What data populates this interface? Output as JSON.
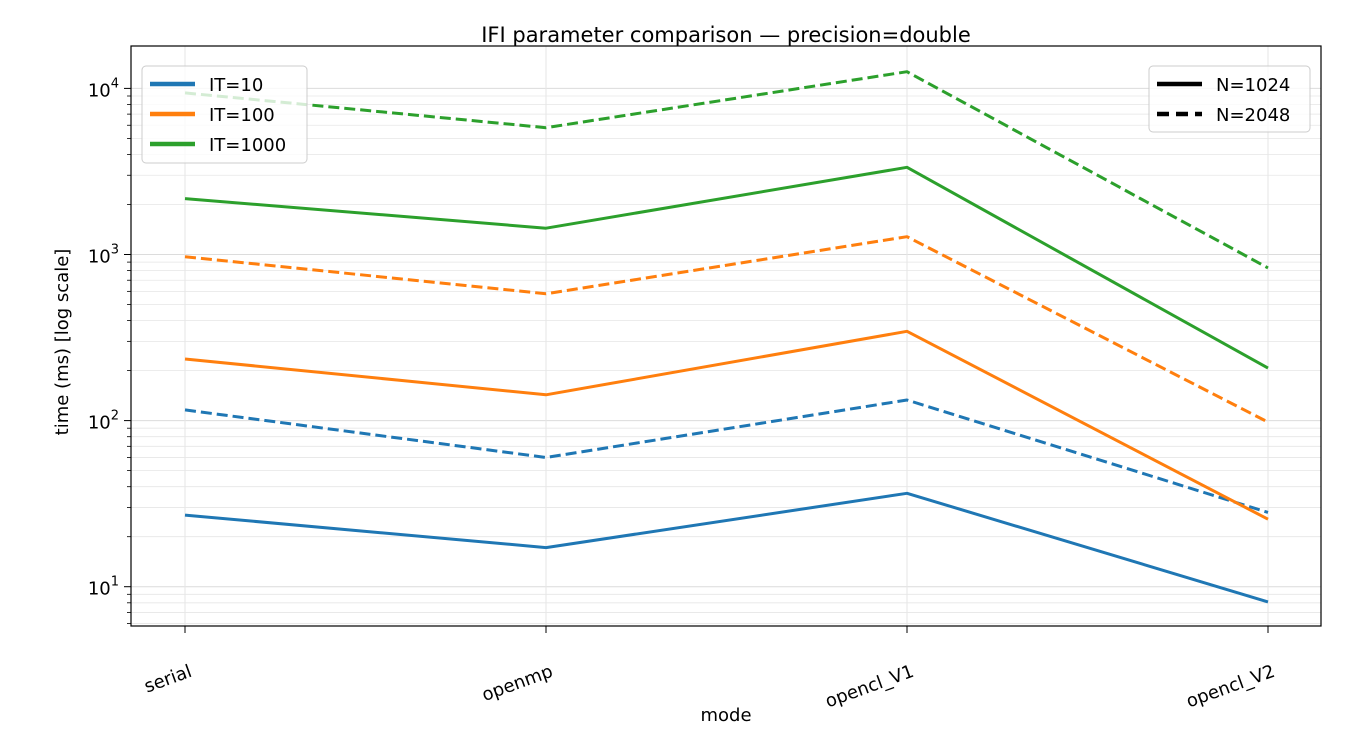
{
  "chart_data": {
    "type": "line",
    "title": "IFI parameter comparison — precision=double",
    "xlabel": "mode",
    "ylabel": "time (ms) [log scale]",
    "categories": [
      "serial",
      "openmp",
      "opencl_V1",
      "opencl_V2"
    ],
    "y_scale": "log",
    "ylim": [
      5.8,
      18000
    ],
    "grid": true,
    "y_tick_values": [
      10,
      100,
      1000,
      10000
    ],
    "y_tick_labels": [
      {
        "base": "10",
        "exp": "1"
      },
      {
        "base": "10",
        "exp": "2"
      },
      {
        "base": "10",
        "exp": "3"
      },
      {
        "base": "10",
        "exp": "4"
      }
    ],
    "series": [
      {
        "name": "IT=10",
        "size": "N=1024",
        "color": "#1f77b4",
        "style": "solid",
        "values": [
          27,
          17.2,
          36.5,
          8.1
        ]
      },
      {
        "name": "IT=10",
        "size": "N=2048",
        "color": "#1f77b4",
        "style": "dashed",
        "values": [
          116,
          60,
          133,
          28
        ]
      },
      {
        "name": "IT=100",
        "size": "N=1024",
        "color": "#ff7f0e",
        "style": "solid",
        "values": [
          235,
          143,
          345,
          25.5
        ]
      },
      {
        "name": "IT=100",
        "size": "N=2048",
        "color": "#ff7f0e",
        "style": "dashed",
        "values": [
          970,
          580,
          1280,
          98
        ]
      },
      {
        "name": "IT=1000",
        "size": "N=1024",
        "color": "#2ca02c",
        "style": "solid",
        "values": [
          2170,
          1440,
          3350,
          207
        ]
      },
      {
        "name": "IT=1000",
        "size": "N=2048",
        "color": "#2ca02c",
        "style": "dashed",
        "values": [
          9400,
          5800,
          12600,
          830
        ]
      }
    ],
    "legend_color": {
      "placement": "top-left",
      "entries": [
        {
          "label": "IT=10",
          "color": "#1f77b4"
        },
        {
          "label": "IT=100",
          "color": "#ff7f0e"
        },
        {
          "label": "IT=1000",
          "color": "#2ca02c"
        }
      ]
    },
    "legend_style": {
      "placement": "top-right",
      "entries": [
        {
          "label": "N=1024",
          "style": "solid"
        },
        {
          "label": "N=2048",
          "style": "dashed"
        }
      ]
    }
  }
}
